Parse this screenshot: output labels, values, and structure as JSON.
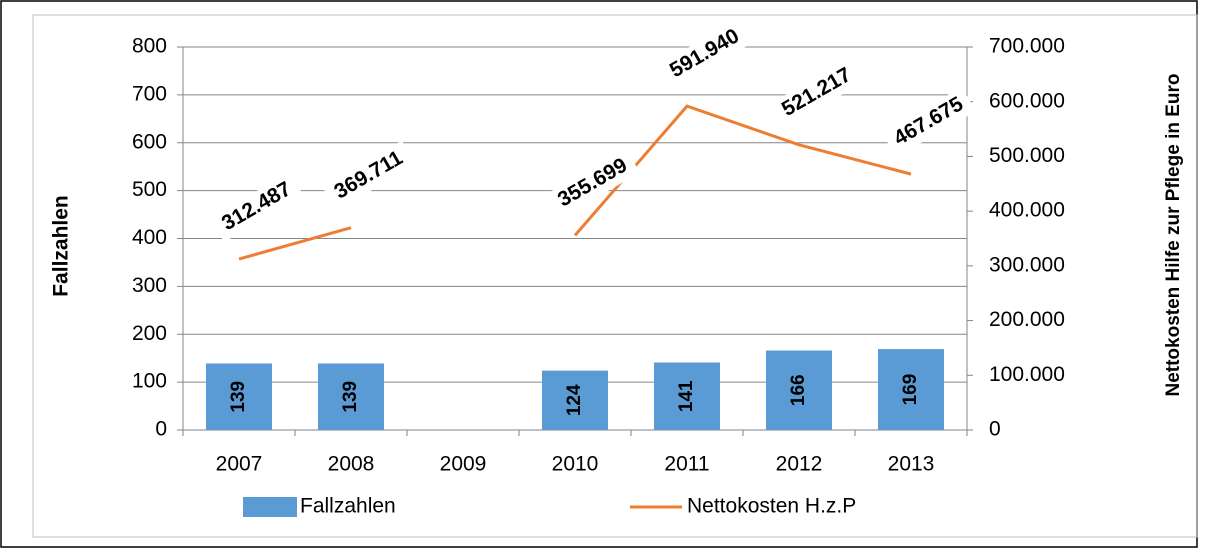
{
  "chart_data": {
    "type": "bar+line",
    "categories": [
      "2007",
      "2008",
      "2009",
      "2010",
      "2011",
      "2012",
      "2013"
    ],
    "series": [
      {
        "name": "Fallzahlen",
        "color": "#5b9bd5",
        "type": "bar",
        "values": [
          139,
          139,
          null,
          124,
          141,
          166,
          169
        ]
      },
      {
        "name": "Nettokosten H.z.P",
        "color": "#ed7d31",
        "type": "line",
        "axis": "y2",
        "values": [
          312487,
          369711,
          null,
          355699,
          591940,
          521217,
          467675
        ],
        "value_labels": [
          "312.487",
          "369.711",
          null,
          "355.699",
          "591.940",
          "521.217",
          "467.675"
        ]
      }
    ],
    "ylabel": "Fallzahlen",
    "y2label": "Nettokosten Hilfe zur Pflege in Euro",
    "ylim": [
      0,
      800
    ],
    "yticks": [
      0,
      100,
      200,
      300,
      400,
      500,
      600,
      700,
      800
    ],
    "y2lim": [
      0,
      700000
    ],
    "y2ticks": [
      0,
      {
        "value": 100000,
        "label": "100.000"
      },
      {
        "value": 200000,
        "label": "200.000"
      },
      {
        "value": 300000,
        "label": "300.000"
      },
      {
        "value": 400000,
        "label": "400.000"
      },
      {
        "value": 500000,
        "label": "500.000"
      },
      {
        "value": 600000,
        "label": "600.000"
      },
      {
        "value": 700000,
        "label": "700.000"
      }
    ],
    "grid": true,
    "legend": "bottom"
  }
}
